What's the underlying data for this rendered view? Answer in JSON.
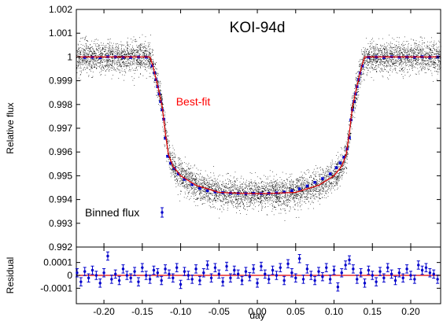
{
  "colors": {
    "raw_points": "#000000",
    "binned": "#0000cc",
    "fit": "#e00000",
    "annotation": "#ff0000"
  },
  "chart_data": [
    {
      "type": "scatter",
      "title": "KOI-94d",
      "xlabel": "",
      "ylabel": "Relative flux",
      "xlim": [
        -0.236,
        0.239
      ],
      "ylim": [
        0.992,
        1.002
      ],
      "grid": false,
      "legend_position": "bottom-left",
      "yticks": [
        0.992,
        0.993,
        0.994,
        0.995,
        0.996,
        0.997,
        0.998,
        0.999,
        1.0,
        1.001,
        1.002
      ],
      "ytick_labels": [
        "0.992",
        "0.993",
        "0.994",
        "0.995",
        "0.996",
        "0.997",
        "0.998",
        "0.999",
        "1",
        "1.001",
        "1.002"
      ],
      "annotations": [
        {
          "text": "Best-fit",
          "x": -0.106,
          "y": 0.99813,
          "color": "#ff0000"
        }
      ],
      "series": [
        {
          "name": "Binned flux",
          "style": "points-with-errorbars",
          "error": 4e-05,
          "x": [
            -0.225,
            -0.215,
            -0.205,
            -0.195,
            -0.185,
            -0.175,
            -0.165,
            -0.155,
            -0.145,
            -0.137,
            -0.134,
            -0.132,
            -0.13,
            -0.128,
            -0.126,
            -0.124,
            -0.122,
            -0.12,
            -0.117,
            -0.113,
            -0.108,
            -0.103,
            -0.095,
            -0.085,
            -0.075,
            -0.065,
            -0.055,
            -0.045,
            -0.035,
            -0.025,
            -0.015,
            -0.005,
            0.005,
            0.015,
            0.025,
            0.035,
            0.045,
            0.055,
            0.065,
            0.075,
            0.085,
            0.095,
            0.103,
            0.108,
            0.113,
            0.117,
            0.12,
            0.122,
            0.124,
            0.126,
            0.128,
            0.13,
            0.132,
            0.134,
            0.137,
            0.145,
            0.155,
            0.165,
            0.175,
            0.185,
            0.195,
            0.205,
            0.215,
            0.225,
            0.235
          ],
          "y": [
            0.99998,
            0.99999,
            0.99997,
            1.00001,
            1.0,
            0.99999,
            0.99998,
            1.0,
            0.99999,
            0.99963,
            0.99933,
            0.99905,
            0.99875,
            0.99845,
            0.99812,
            0.99778,
            0.99738,
            0.99658,
            0.99582,
            0.99553,
            0.9953,
            0.99508,
            0.99485,
            0.99463,
            0.99447,
            0.99437,
            0.99432,
            0.99429,
            0.99427,
            0.99426,
            0.99425,
            0.99426,
            0.99425,
            0.99426,
            0.99428,
            0.99431,
            0.99437,
            0.99445,
            0.99457,
            0.99472,
            0.99488,
            0.99508,
            0.99534,
            0.99554,
            0.99578,
            0.99613,
            0.9966,
            0.99735,
            0.99778,
            0.99812,
            0.99845,
            0.99875,
            0.99905,
            0.99932,
            0.99962,
            0.99999,
            1.0,
            0.99998,
            1.00001,
            0.99999,
            1.0,
            0.99999,
            1.00001,
            0.99999,
            1.0
          ]
        },
        {
          "name": "Best-fit",
          "style": "line",
          "x": [
            -0.236,
            -0.14,
            -0.136,
            -0.13,
            -0.124,
            -0.12,
            -0.116,
            -0.11,
            -0.1,
            -0.08,
            -0.05,
            -0.02,
            0.0,
            0.02,
            0.05,
            0.08,
            0.1,
            0.11,
            0.116,
            0.12,
            0.124,
            0.13,
            0.136,
            0.14,
            0.239
          ],
          "y": [
            1.0,
            1.0,
            0.9996,
            0.9988,
            0.9979,
            0.9968,
            0.9959,
            0.9954,
            0.995,
            0.9946,
            0.9943,
            0.99426,
            0.99425,
            0.99426,
            0.9943,
            0.9946,
            0.995,
            0.9954,
            0.9959,
            0.9968,
            0.9979,
            0.9988,
            0.9996,
            1.0,
            1.0
          ]
        },
        {
          "name": "",
          "style": "dense-dots",
          "scatter_sd": 0.00032,
          "point_count": 7000,
          "note_model": "same curve as Best-fit"
        }
      ]
    },
    {
      "type": "scatter",
      "title": "",
      "xlabel": "day",
      "ylabel": "Residual",
      "xlim": [
        -0.236,
        0.239
      ],
      "ylim": [
        -0.00022,
        0.00022
      ],
      "grid": false,
      "yticks": [
        -0.0001,
        0.0,
        0.0001
      ],
      "ytick_labels": [
        "-0.0001",
        "0",
        "0.0001"
      ],
      "xticks": [
        -0.2,
        -0.15,
        -0.1,
        -0.05,
        0.0,
        0.05,
        0.1,
        0.15,
        0.2
      ],
      "xtick_labels": [
        "-0.20",
        "-0.15",
        "-0.10",
        "-0.05",
        "0.00",
        "0.05",
        "0.10",
        "0.15",
        "0.20"
      ],
      "series": [
        {
          "name": "",
          "style": "points-with-errorbars",
          "error": 3.2e-05,
          "x": [
            -0.235,
            -0.23,
            -0.225,
            -0.22,
            -0.215,
            -0.21,
            -0.205,
            -0.2,
            -0.195,
            -0.19,
            -0.185,
            -0.18,
            -0.175,
            -0.17,
            -0.165,
            -0.16,
            -0.155,
            -0.15,
            -0.145,
            -0.14,
            -0.135,
            -0.13,
            -0.125,
            -0.12,
            -0.115,
            -0.11,
            -0.105,
            -0.1,
            -0.095,
            -0.09,
            -0.085,
            -0.08,
            -0.075,
            -0.07,
            -0.065,
            -0.06,
            -0.055,
            -0.05,
            -0.045,
            -0.04,
            -0.035,
            -0.03,
            -0.025,
            -0.02,
            -0.015,
            -0.01,
            -0.005,
            0.0,
            0.005,
            0.01,
            0.015,
            0.02,
            0.025,
            0.03,
            0.035,
            0.04,
            0.045,
            0.05,
            0.055,
            0.06,
            0.065,
            0.07,
            0.075,
            0.08,
            0.085,
            0.09,
            0.095,
            0.1,
            0.105,
            0.11,
            0.115,
            0.12,
            0.125,
            0.13,
            0.135,
            0.14,
            0.145,
            0.15,
            0.155,
            0.16,
            0.165,
            0.17,
            0.175,
            0.18,
            0.185,
            0.19,
            0.195,
            0.2,
            0.205,
            0.21,
            0.215,
            0.22,
            0.225,
            0.23,
            0.235
          ],
          "y": [
            2e-05,
            -5e-05,
            3e-05,
            -2e-05,
            4e-05,
            0.0,
            -6e-05,
            2e-05,
            0.00015,
            -3e-05,
            1e-05,
            -4e-05,
            5e-05,
            0.0,
            -2e-05,
            3e-05,
            -5e-05,
            6e-05,
            0.0,
            -3e-05,
            4e-05,
            2e-05,
            -4e-05,
            5e-05,
            1e-05,
            -2e-05,
            6e-05,
            -7e-05,
            3e-05,
            0.0,
            -3e-05,
            5e-05,
            -4e-05,
            2e-05,
            8e-05,
            -2e-05,
            6e-05,
            1e-05,
            -5e-05,
            7e-05,
            -2e-05,
            4e-05,
            1e-05,
            -4e-05,
            3e-05,
            -1e-05,
            5e-05,
            -6e-05,
            7e-05,
            1e-05,
            -3e-05,
            4e-05,
            0.0,
            6e-05,
            -4e-05,
            9e-05,
            2e-05,
            -2e-05,
            0.00013,
            -3e-05,
            5e-05,
            0.0,
            -4e-05,
            3e-05,
            -1e-05,
            6e-05,
            -3e-05,
            4e-05,
            -9e-05,
            2e-05,
            8e-05,
            0.00012,
            5e-05,
            -3e-05,
            2e-05,
            -6e-05,
            4e-05,
            0.0,
            -5e-05,
            3e-05,
            -2e-05,
            6e-05,
            1e-05,
            -4e-05,
            2e-05,
            -2e-05,
            5e-05,
            0.0,
            -3e-05,
            8e-05,
            4e-05,
            6e-05,
            2e-05,
            1e-05,
            -3e-05
          ]
        },
        {
          "name": "",
          "style": "line",
          "x": [
            -0.236,
            0.239
          ],
          "y": [
            0.0,
            0.0
          ]
        }
      ]
    }
  ]
}
